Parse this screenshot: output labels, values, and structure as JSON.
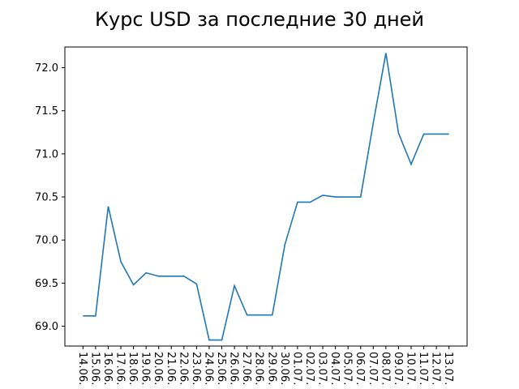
{
  "chart_data": {
    "type": "line",
    "title": "Курс USD за последние 30 дней",
    "xlabel": "",
    "ylabel": "",
    "categories": [
      "14.06.",
      "15.06.",
      "16.06.",
      "17.06.",
      "18.06.",
      "19.06.",
      "20.06.",
      "21.06.",
      "22.06.",
      "23.06.",
      "24.06.",
      "25.06.",
      "26.06.",
      "27.06.",
      "28.06.",
      "29.06.",
      "30.06.",
      "01.07.",
      "02.07.",
      "03.07.",
      "04.07.",
      "05.07.",
      "06.07.",
      "07.07.",
      "08.07.",
      "09.07.",
      "10.07.",
      "11.07.",
      "12.07.",
      "13.07."
    ],
    "values": [
      69.12,
      69.12,
      70.39,
      69.75,
      69.48,
      69.62,
      69.58,
      69.58,
      69.58,
      69.49,
      68.84,
      68.84,
      69.47,
      69.13,
      69.13,
      69.13,
      69.95,
      70.44,
      70.44,
      70.52,
      70.5,
      70.5,
      70.5,
      71.36,
      72.17,
      71.24,
      70.88,
      71.23,
      71.23,
      71.23
    ],
    "yticks": [
      "69.0",
      "69.5",
      "70.0",
      "70.5",
      "71.0",
      "71.5",
      "72.0"
    ],
    "ylim": [
      68.77,
      72.24
    ],
    "grid": false,
    "line_color": "#1f77b4"
  }
}
